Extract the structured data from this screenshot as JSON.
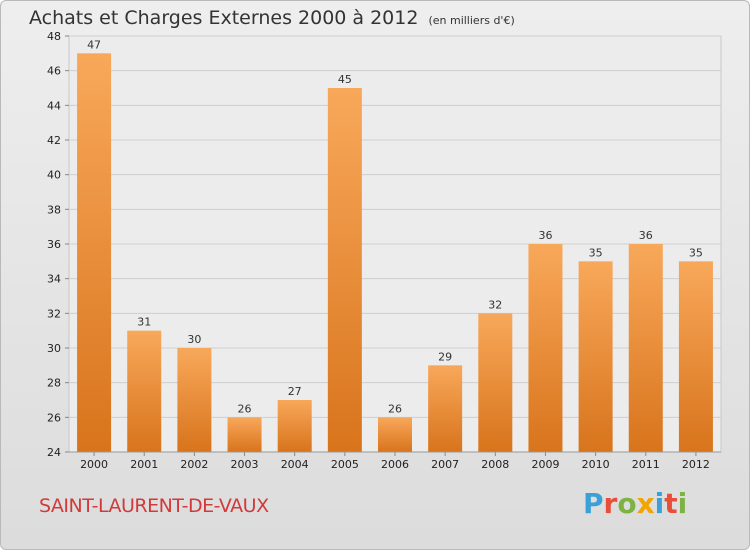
{
  "title": "Achats et Charges Externes 2000 à 2012",
  "subtitle": "(en milliers d'€)",
  "commune": "SAINT-LAURENT-DE-VAUX",
  "logo": {
    "text": "Proxiti",
    "letter_colors": [
      "#3aa0d8",
      "#e94e3a",
      "#7cb342",
      "#f2a400",
      "#3aa0d8",
      "#e94e3a",
      "#7cb342"
    ]
  },
  "colors": {
    "bar_light": "#f8a85a",
    "bar_dark": "#d8741c",
    "grid": "#cfcfcf",
    "axis_text": "#222222"
  },
  "chart_data": {
    "type": "bar",
    "categories": [
      "2000",
      "2001",
      "2002",
      "2003",
      "2004",
      "2005",
      "2006",
      "2007",
      "2008",
      "2009",
      "2010",
      "2011",
      "2012"
    ],
    "values": [
      47,
      31,
      30,
      26,
      27,
      45,
      26,
      29,
      32,
      36,
      35,
      36,
      35
    ],
    "ylim": [
      24,
      48
    ],
    "yticks": [
      24,
      26,
      28,
      30,
      32,
      34,
      36,
      38,
      40,
      42,
      44,
      46,
      48
    ],
    "grid": true,
    "data_labels": true
  }
}
